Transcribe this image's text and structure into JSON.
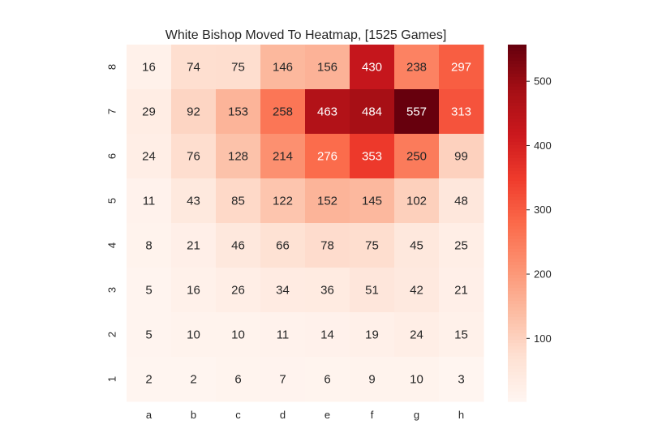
{
  "chart_data": {
    "type": "heatmap",
    "title": "White Bishop Moved To Heatmap,  [1525 Games]",
    "xlabel": "",
    "ylabel": "",
    "x_categories": [
      "a",
      "b",
      "c",
      "d",
      "e",
      "f",
      "g",
      "h"
    ],
    "y_categories": [
      "8",
      "7",
      "6",
      "5",
      "4",
      "3",
      "2",
      "1"
    ],
    "values": [
      [
        16,
        74,
        75,
        146,
        156,
        430,
        238,
        297
      ],
      [
        29,
        92,
        153,
        258,
        463,
        484,
        557,
        313
      ],
      [
        24,
        76,
        128,
        214,
        276,
        353,
        250,
        99
      ],
      [
        11,
        43,
        85,
        122,
        152,
        145,
        102,
        48
      ],
      [
        8,
        21,
        46,
        66,
        78,
        75,
        45,
        25
      ],
      [
        5,
        16,
        26,
        34,
        36,
        51,
        42,
        21
      ],
      [
        5,
        10,
        10,
        11,
        14,
        19,
        24,
        15
      ],
      [
        2,
        2,
        6,
        7,
        6,
        9,
        10,
        3
      ]
    ],
    "colormap": "Reds",
    "colorbar": {
      "range": [
        2,
        557
      ],
      "ticks": [
        100,
        200,
        300,
        400,
        500
      ]
    },
    "grid": false
  }
}
